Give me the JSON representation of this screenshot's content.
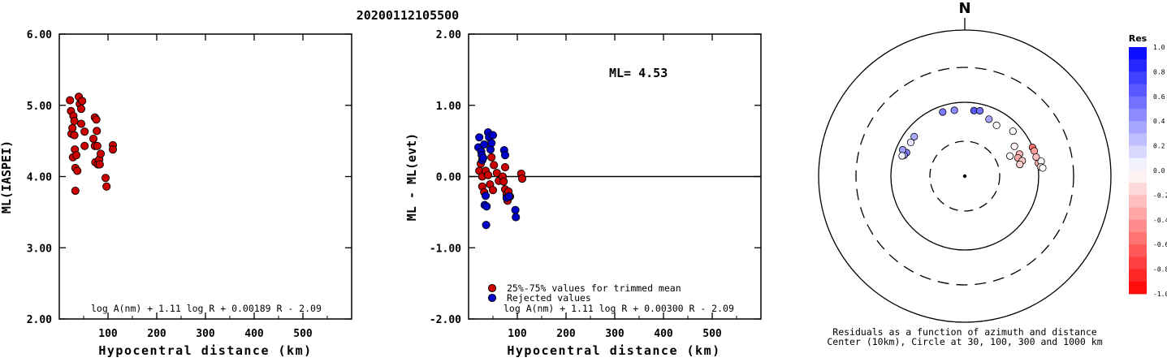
{
  "title": "20200112105500",
  "chart_data": [
    {
      "type": "scatter",
      "xlabel": "Hypocentral distance (km)",
      "ylabel": "ML(IASPEI)",
      "xlim": [
        0,
        600
      ],
      "ylim": [
        2.0,
        6.0
      ],
      "x_ticks": [
        "100",
        "200",
        "300",
        "400",
        "500"
      ],
      "y_ticks": [
        "6.00",
        "5.00",
        "4.00",
        "3.00",
        "2.00"
      ],
      "formula": "log A(nm) + 1.11 log R + 0.00189 R - 2.09",
      "series": [
        {
          "color": "#cc0000",
          "points": [
            [
              22,
              5.07
            ],
            [
              24,
              4.92
            ],
            [
              25,
              4.6
            ],
            [
              27,
              4.68
            ],
            [
              28,
              4.27
            ],
            [
              29,
              4.85
            ],
            [
              31,
              4.78
            ],
            [
              31,
              4.58
            ],
            [
              32,
              4.38
            ],
            [
              33,
              4.12
            ],
            [
              33,
              3.8
            ],
            [
              35,
              4.3
            ],
            [
              37,
              4.08
            ],
            [
              40,
              5.12
            ],
            [
              42,
              5.02
            ],
            [
              45,
              4.95
            ],
            [
              45,
              4.74
            ],
            [
              47,
              5.06
            ],
            [
              52,
              4.63
            ],
            [
              52,
              4.43
            ],
            [
              70,
              4.53
            ],
            [
              73,
              4.83
            ],
            [
              73,
              4.43
            ],
            [
              74,
              4.2
            ],
            [
              76,
              4.8
            ],
            [
              77,
              4.64
            ],
            [
              78,
              4.43
            ],
            [
              79,
              4.17
            ],
            [
              82,
              4.24
            ],
            [
              83,
              4.17
            ],
            [
              85,
              4.32
            ],
            [
              95,
              3.98
            ],
            [
              97,
              3.86
            ],
            [
              110,
              4.44
            ],
            [
              110,
              4.38
            ]
          ]
        }
      ]
    },
    {
      "type": "scatter",
      "xlabel": "Hypocentral distance (km)",
      "ylabel": "ML - ML(evt)",
      "xlim": [
        0,
        600
      ],
      "ylim": [
        -2.0,
        2.0
      ],
      "x_ticks": [
        "100",
        "200",
        "300",
        "400",
        "500"
      ],
      "y_ticks": [
        "2.00",
        "1.00",
        "0.00",
        "-1.00",
        "-2.00"
      ],
      "annotation": "ML= 4.53",
      "formula": "log A(nm) + 1.11 log R + 0.00300 R - 2.09",
      "legend": {
        "placement": "bottom-left",
        "items": [
          "25%-75% values for trimmed mean",
          "Rejected values"
        ]
      },
      "series": [
        {
          "name": "25%-75% values for trimmed mean",
          "color": "#cc0000",
          "points": [
            [
              22,
              0.08
            ],
            [
              25,
              0.18
            ],
            [
              28,
              0.0
            ],
            [
              28,
              -0.14
            ],
            [
              32,
              -0.22
            ],
            [
              35,
              0.08
            ],
            [
              40,
              0.02
            ],
            [
              44,
              -0.11
            ],
            [
              47,
              0.27
            ],
            [
              50,
              -0.19
            ],
            [
              52,
              0.16
            ],
            [
              58,
              0.05
            ],
            [
              62,
              -0.06
            ],
            [
              70,
              0.0
            ],
            [
              72,
              -0.07
            ],
            [
              75,
              0.13
            ],
            [
              75,
              -0.18
            ],
            [
              78,
              -0.25
            ],
            [
              80,
              -0.34
            ],
            [
              82,
              -0.21
            ],
            [
              85,
              -0.28
            ],
            [
              108,
              0.04
            ],
            [
              110,
              -0.03
            ]
          ]
        },
        {
          "name": "Rejected values",
          "color": "#0000cc",
          "points": [
            [
              20,
              0.41
            ],
            [
              22,
              0.55
            ],
            [
              26,
              0.35
            ],
            [
              27,
              0.3
            ],
            [
              28,
              0.23
            ],
            [
              30,
              0.26
            ],
            [
              32,
              0.45
            ],
            [
              33,
              -0.4
            ],
            [
              35,
              -0.27
            ],
            [
              36,
              -0.68
            ],
            [
              37,
              -0.42
            ],
            [
              40,
              0.62
            ],
            [
              42,
              0.55
            ],
            [
              45,
              0.38
            ],
            [
              47,
              0.47
            ],
            [
              50,
              0.58
            ],
            [
              73,
              0.37
            ],
            [
              75,
              0.3
            ],
            [
              78,
              -0.3
            ],
            [
              83,
              -0.28
            ],
            [
              96,
              -0.47
            ],
            [
              97,
              -0.57
            ]
          ]
        }
      ]
    },
    {
      "type": "scatter",
      "subtype": "polar",
      "north_label": "N",
      "caption_line1": "Residuals as a function of azimuth and distance",
      "caption_line2": "Center (10km), Circle at 30, 100, 300 and 1000 km",
      "rings_km": [
        30,
        100,
        300,
        1000
      ],
      "colorbar": {
        "title": "Res",
        "ticks": [
          "1.0",
          "0.8",
          "0.6",
          "0.4",
          "0.2",
          "0.0",
          "-0.2",
          "-0.4",
          "-0.6",
          "-0.8",
          "-1.0"
        ],
        "max_color": "#0000ff",
        "min_color": "#ff0000"
      },
      "stations": [
        {
          "azimuth": 308,
          "distance_km": 74,
          "residual": 0.33
        },
        {
          "azimuth": 302,
          "distance_km": 73,
          "residual": 0.1
        },
        {
          "azimuth": 292,
          "distance_km": 71,
          "residual": 0.48
        },
        {
          "azimuth": 289,
          "distance_km": 74,
          "residual": 0.42
        },
        {
          "azimuth": 293,
          "distance_km": 82,
          "residual": 0.38
        },
        {
          "azimuth": 288,
          "distance_km": 78,
          "residual": 0.05
        },
        {
          "azimuth": 341,
          "distance_km": 83,
          "residual": 0.52
        },
        {
          "azimuth": 351,
          "distance_km": 80,
          "residual": 0.45
        },
        {
          "azimuth": 8,
          "distance_km": 79,
          "residual": 0.65
        },
        {
          "azimuth": 13,
          "distance_km": 81,
          "residual": 0.55
        },
        {
          "azimuth": 23,
          "distance_km": 69,
          "residual": 0.35
        },
        {
          "azimuth": 32,
          "distance_km": 65,
          "residual": 0.02
        },
        {
          "azimuth": 47,
          "distance_km": 78,
          "residual": 0.0
        },
        {
          "azimuth": 59,
          "distance_km": 61,
          "residual": -0.05
        },
        {
          "azimuth": 68,
          "distance_km": 63,
          "residual": -0.28
        },
        {
          "azimuth": 71,
          "distance_km": 58,
          "residual": -0.33
        },
        {
          "azimuth": 75,
          "distance_km": 64,
          "residual": -0.22
        },
        {
          "azimuth": 78,
          "distance_km": 58,
          "residual": -0.18
        },
        {
          "azimuth": 67,
          "distance_km": 99,
          "residual": -0.55
        },
        {
          "azimuth": 70,
          "distance_km": 100,
          "residual": -0.38
        },
        {
          "azimuth": 75,
          "distance_km": 100,
          "residual": -0.25
        },
        {
          "azimuth": 80,
          "distance_km": 103,
          "residual": -0.3
        },
        {
          "azimuth": 79,
          "distance_km": 113,
          "residual": 0.02
        },
        {
          "azimuth": 83,
          "distance_km": 108,
          "residual": -0.12
        },
        {
          "azimuth": 84,
          "distance_km": 115,
          "residual": 0.0
        },
        {
          "azimuth": 66,
          "distance_km": 47,
          "residual": 0.0
        }
      ]
    }
  ]
}
